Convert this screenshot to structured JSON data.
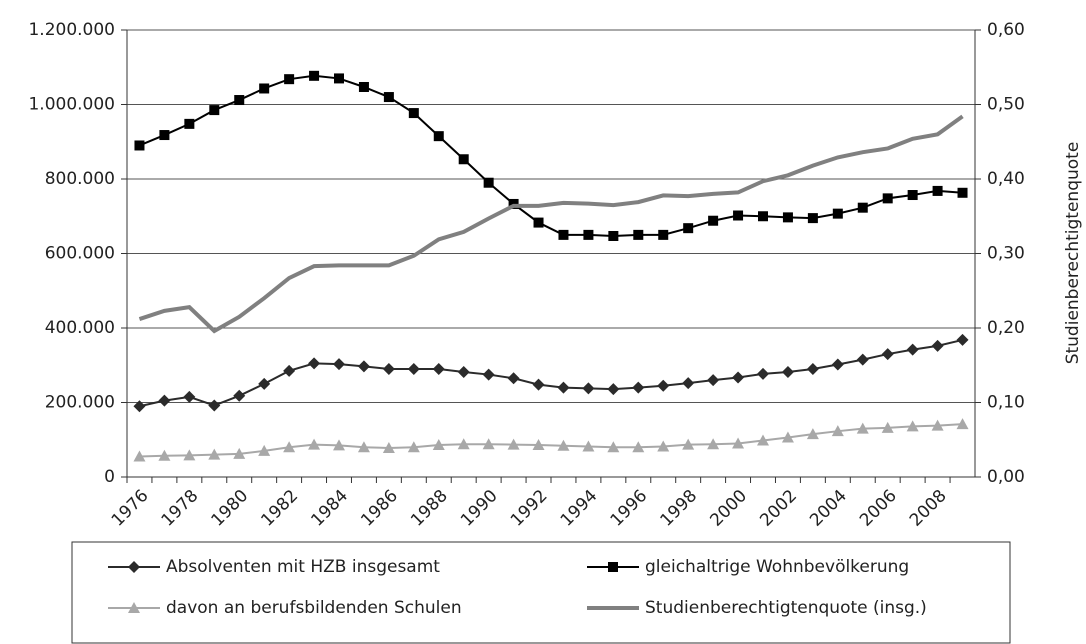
{
  "chart_data": {
    "type": "line",
    "y2_label": "Studienberechtigtenquote",
    "categories": [
      1976,
      null,
      1978,
      null,
      1980,
      null,
      1982,
      null,
      1984,
      null,
      1986,
      null,
      1988,
      null,
      1990,
      null,
      1992,
      null,
      1994,
      null,
      1996,
      null,
      1998,
      null,
      2000,
      null,
      2002,
      null,
      2004,
      null,
      2006,
      null,
      2008,
      null
    ],
    "ylim": [
      0,
      1200000
    ],
    "yticks": [
      0,
      {
        "value": 200000,
        "label": "200.000"
      },
      {
        "value": 400000,
        "label": "400.000"
      },
      {
        "value": 600000,
        "label": "600.000"
      },
      {
        "value": 800000,
        "label": "800.000"
      },
      {
        "value": 1000000,
        "label": "1.000.000"
      },
      {
        "value": 1200000,
        "label": "1.200.000"
      }
    ],
    "y2lim": [
      0,
      0.6
    ],
    "y2ticks": [
      {
        "value": 0,
        "label": "0,00"
      },
      {
        "value": 0.1,
        "label": "0,10"
      },
      {
        "value": 0.2,
        "label": "0,20"
      },
      {
        "value": 0.3,
        "label": "0,30"
      },
      {
        "value": 0.4,
        "label": "0,40"
      },
      {
        "value": 0.5,
        "label": "0,50"
      },
      {
        "value": 0.6,
        "label": "0,60"
      }
    ],
    "grid": true,
    "legend": "bottom",
    "series": [
      {
        "name": "Absolventen mit HZB insgesamt",
        "color": "#2b2b2b",
        "marker": "diamond",
        "values": [
          190000,
          205000,
          215000,
          192000,
          218000,
          250000,
          285000,
          305000,
          303000,
          297000,
          290000,
          290000,
          290000,
          282000,
          275000,
          265000,
          248000,
          240000,
          238000,
          236000,
          240000,
          245000,
          252000,
          260000,
          267000,
          277000,
          282000,
          290000,
          302000,
          315000,
          330000,
          342000,
          352000,
          368000
        ]
      },
      {
        "name": "gleichaltrige Wohnbevölkerung",
        "color": "#000000",
        "marker": "square",
        "values": [
          890000,
          918000,
          948000,
          985000,
          1012000,
          1043000,
          1068000,
          1077000,
          1070000,
          1047000,
          1020000,
          977000,
          915000,
          853000,
          790000,
          733000,
          683000,
          650000,
          650000,
          647000,
          650000,
          650000,
          668000,
          688000,
          702000,
          700000,
          697000,
          695000,
          707000,
          723000,
          748000,
          757000,
          768000,
          763000
        ]
      },
      {
        "name": "davon an berufsbildenden Schulen",
        "color": "#a8a8a8",
        "marker": "triangle",
        "values": [
          55000,
          57000,
          58000,
          60000,
          62000,
          70000,
          80000,
          87000,
          85000,
          80000,
          78000,
          80000,
          86000,
          88000,
          88000,
          87000,
          86000,
          84000,
          82000,
          80000,
          80000,
          82000,
          87000,
          88000,
          90000,
          98000,
          106000,
          115000,
          123000,
          130000,
          132000,
          136000,
          138000,
          142000
        ]
      },
      {
        "name": "Studienberechtigtenquote (insg.)",
        "color": "#808080",
        "marker": "none",
        "axis": "y2",
        "values": [
          0.212,
          0.223,
          0.228,
          0.196,
          0.215,
          0.24,
          0.267,
          0.283,
          0.284,
          0.284,
          0.284,
          0.297,
          0.319,
          0.329,
          0.347,
          0.364,
          0.364,
          0.368,
          0.367,
          0.365,
          0.369,
          0.378,
          0.377,
          0.38,
          0.382,
          0.397,
          0.405,
          0.418,
          0.429,
          0.436,
          0.441,
          0.454,
          0.46,
          0.484
        ]
      }
    ]
  }
}
